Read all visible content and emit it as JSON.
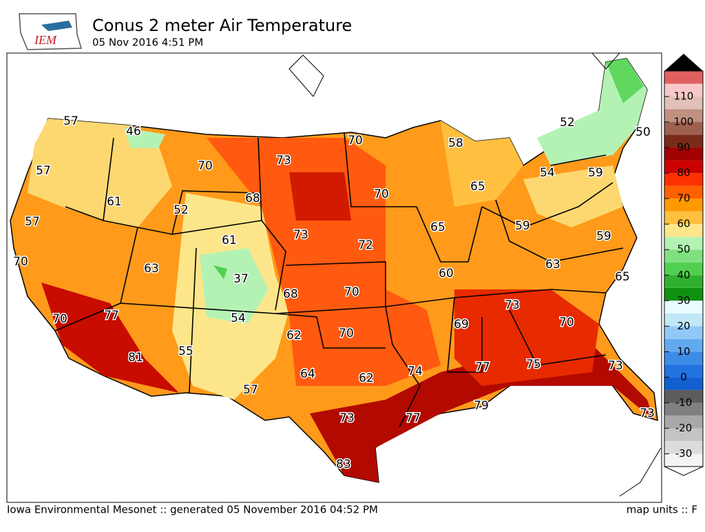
{
  "header": {
    "logo": "IEM",
    "title": "Conus 2 meter Air Temperature",
    "subtitle": "05 Nov 2016 4:51 PM"
  },
  "footer": {
    "credit": "Iowa Environmental Mesonet :: generated 05 November 2016 04:52 PM",
    "units": "map units :: F"
  },
  "stations": [
    57,
    46,
    70,
    73,
    70,
    58,
    52,
    50,
    57,
    61,
    52,
    68,
    70,
    65,
    54,
    59,
    57,
    61,
    73,
    72,
    65,
    59,
    59,
    70,
    63,
    37,
    68,
    70,
    60,
    63,
    65,
    70,
    77,
    54,
    62,
    70,
    69,
    73,
    70,
    81,
    55,
    64,
    62,
    74,
    77,
    75,
    73,
    57,
    73,
    77,
    79,
    73,
    83
  ],
  "colorbar": {
    "lim": [
      -35,
      120
    ],
    "step": 5,
    "ticks": [
      110,
      100,
      90,
      80,
      70,
      60,
      50,
      40,
      30,
      20,
      10,
      0,
      -10,
      -20,
      -30
    ],
    "colors": [
      "#f4f4f4",
      "#dcdcdc",
      "#c4c4c4",
      "#a8a8a8",
      "#808080",
      "#5c5c5c",
      "#1060d0",
      "#2272e0",
      "#3c8ce8",
      "#62aaf0",
      "#92c8f8",
      "#c0e8f8",
      "#e8fbff",
      "#109010",
      "#30b030",
      "#50d050",
      "#80e080",
      "#b4f2b4",
      "#fde68a",
      "#ffc040",
      "#ff9900",
      "#ff6000",
      "#ff3000",
      "#cc0000",
      "#a00000",
      "#7a2a18",
      "#a06050",
      "#c09080",
      "#e0c0b8",
      "#f8c8c8",
      "#e06060"
    ]
  }
}
